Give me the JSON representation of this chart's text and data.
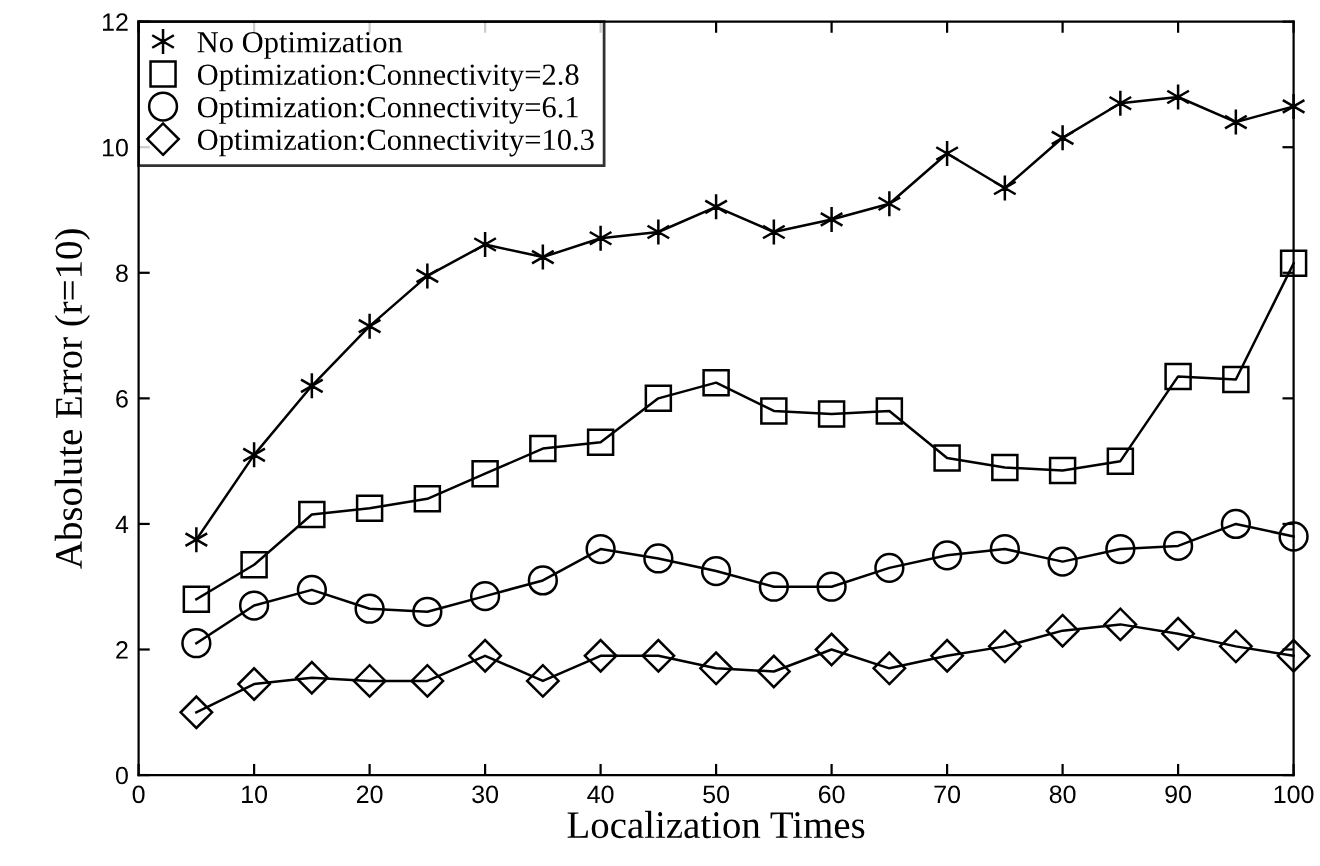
{
  "chart_data": {
    "type": "line",
    "xlabel": "Localization Times",
    "ylabel": "Absolute Error (r=10)",
    "x": [
      5,
      10,
      15,
      20,
      25,
      30,
      35,
      40,
      45,
      50,
      55,
      60,
      65,
      70,
      75,
      80,
      85,
      90,
      95,
      100
    ],
    "series": [
      {
        "name": "No Optimization",
        "color": "#000000",
        "marker": "cross",
        "values": [
          3.75,
          5.1,
          6.2,
          7.15,
          7.95,
          8.45,
          8.25,
          8.55,
          8.65,
          9.05,
          8.65,
          8.85,
          9.1,
          9.9,
          9.35,
          10.15,
          10.7,
          10.8,
          10.4,
          10.65
        ]
      },
      {
        "name": "Optimization:Connectivity=2.8",
        "color": "#000000",
        "marker": "square",
        "values": [
          2.8,
          3.35,
          4.15,
          4.25,
          4.4,
          4.8,
          5.2,
          5.3,
          6.0,
          6.25,
          5.8,
          5.75,
          5.8,
          5.05,
          4.9,
          4.85,
          5.0,
          6.35,
          6.3,
          8.15
        ]
      },
      {
        "name": "Optimization:Connectivity=6.1",
        "color": "#000000",
        "marker": "circle",
        "values": [
          2.1,
          2.7,
          2.95,
          2.65,
          2.6,
          2.85,
          3.1,
          3.6,
          3.45,
          3.25,
          3.0,
          3.0,
          3.3,
          3.5,
          3.6,
          3.4,
          3.6,
          3.65,
          4.0,
          3.8
        ]
      },
      {
        "name": "Optimization:Connectivity=10.3",
        "color": "#000000",
        "marker": "diamond",
        "values": [
          1.0,
          1.45,
          1.55,
          1.5,
          1.5,
          1.9,
          1.5,
          1.9,
          1.9,
          1.7,
          1.65,
          2.0,
          1.7,
          1.9,
          2.05,
          2.3,
          2.4,
          2.25,
          2.05,
          1.9
        ]
      }
    ],
    "xlim": [
      0,
      100
    ],
    "xticks": [
      0,
      10,
      20,
      30,
      40,
      50,
      60,
      70,
      80,
      90,
      100
    ],
    "ylim": [
      0,
      12
    ],
    "yticks": [
      0,
      2,
      4,
      6,
      8,
      10,
      12
    ],
    "grid": false,
    "legend": "top left",
    "line_style": "solid"
  }
}
